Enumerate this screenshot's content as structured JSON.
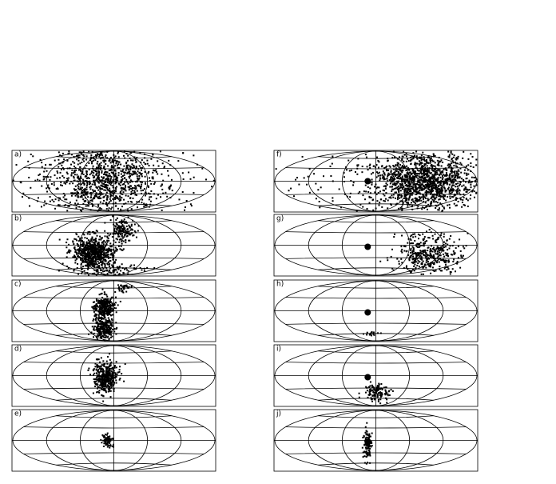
{
  "panels": [
    {
      "label": "a)"
    },
    {
      "label": "b)"
    },
    {
      "label": "c)"
    },
    {
      "label": "d)"
    },
    {
      "label": "e)"
    },
    {
      "label": "f)"
    },
    {
      "label": "g)"
    },
    {
      "label": "h)"
    },
    {
      "label": "i)"
    },
    {
      "label": "j)"
    }
  ]
}
